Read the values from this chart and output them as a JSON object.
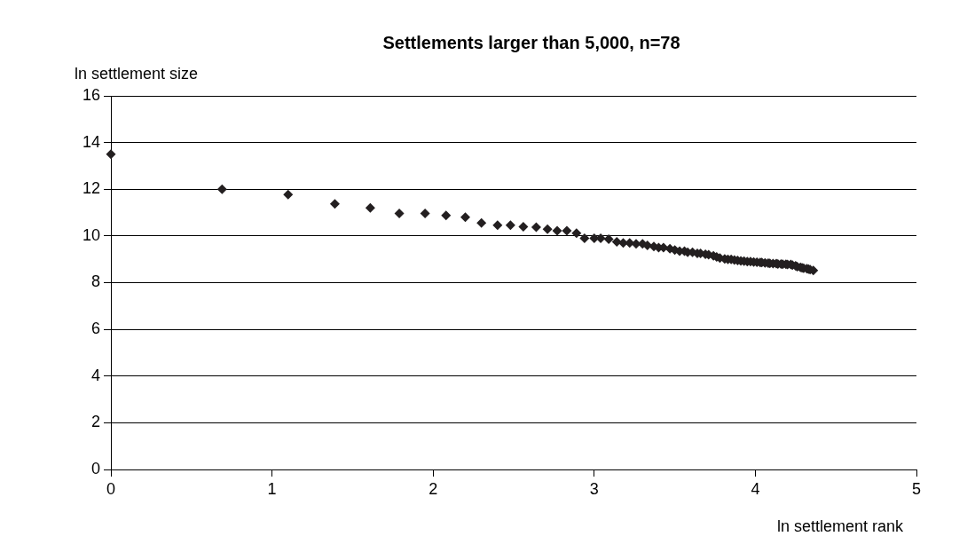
{
  "chart_data": {
    "type": "scatter",
    "title": "Settlements larger than 5,000, n=78",
    "xlabel": "ln settlement rank",
    "ylabel": "ln settlement size",
    "xlim": [
      0,
      5
    ],
    "xticks": [
      0,
      1,
      2,
      3,
      4,
      5
    ],
    "ylim": [
      0,
      16
    ],
    "yticks": [
      0,
      2,
      4,
      6,
      8,
      10,
      12,
      14,
      16
    ],
    "grid": "y",
    "legend": false,
    "marker": "diamond",
    "series": [
      {
        "color": "#231f20",
        "x": [
          0,
          0.69,
          1.1,
          1.39,
          1.61,
          1.79,
          1.95,
          2.08,
          2.2,
          2.3,
          2.4,
          2.48,
          2.56,
          2.64,
          2.71,
          2.77,
          2.83,
          2.89,
          2.94,
          3.0,
          3.04,
          3.09,
          3.14,
          3.18,
          3.22,
          3.26,
          3.3,
          3.33,
          3.37,
          3.4,
          3.43,
          3.47,
          3.5,
          3.53,
          3.56,
          3.58,
          3.61,
          3.64,
          3.66,
          3.69,
          3.71,
          3.74,
          3.76,
          3.78,
          3.81,
          3.83,
          3.85,
          3.87,
          3.89,
          3.91,
          3.93,
          3.95,
          3.97,
          3.99,
          4.01,
          4.03,
          4.04,
          4.06,
          4.08,
          4.09,
          4.11,
          4.13,
          4.14,
          4.16,
          4.17,
          4.19,
          4.2,
          4.22,
          4.23,
          4.25,
          4.26,
          4.28,
          4.29,
          4.3,
          4.32,
          4.33,
          4.34,
          4.36
        ],
        "values": [
          13.5,
          12.0,
          11.77,
          11.37,
          11.2,
          10.96,
          10.96,
          10.88,
          10.8,
          10.56,
          10.46,
          10.46,
          10.39,
          10.38,
          10.29,
          10.22,
          10.22,
          10.12,
          9.9,
          9.9,
          9.9,
          9.86,
          9.75,
          9.7,
          9.7,
          9.66,
          9.66,
          9.6,
          9.55,
          9.5,
          9.5,
          9.45,
          9.4,
          9.35,
          9.35,
          9.3,
          9.3,
          9.25,
          9.25,
          9.22,
          9.2,
          9.15,
          9.1,
          9.05,
          9.02,
          9.0,
          9.0,
          8.97,
          8.95,
          8.93,
          8.92,
          8.9,
          8.9,
          8.88,
          8.87,
          8.86,
          8.86,
          8.85,
          8.84,
          8.83,
          8.82,
          8.82,
          8.8,
          8.8,
          8.79,
          8.79,
          8.78,
          8.78,
          8.75,
          8.72,
          8.68,
          8.66,
          8.64,
          8.62,
          8.6,
          8.58,
          8.56,
          8.52
        ]
      }
    ]
  }
}
